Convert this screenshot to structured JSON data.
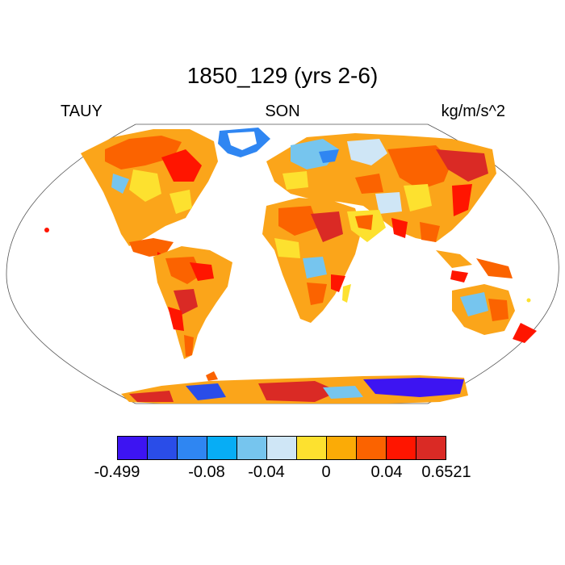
{
  "title": "1850_129 (yrs 2-6)",
  "left_label": "TAUY",
  "center_label": "SON",
  "right_label": "kg/m/s^2",
  "colorbar": {
    "colors": [
      "#3d14f2",
      "#2a4de8",
      "#2f86f2",
      "#07adf5",
      "#76c5ee",
      "#cfe6f6",
      "#fde12f",
      "#fbab06",
      "#fb6300",
      "#ff1500",
      "#da2a25"
    ],
    "tick_labels": [
      "-0.499",
      "-0.08",
      "-0.04",
      "0",
      "0.04",
      "0.6521"
    ]
  }
}
